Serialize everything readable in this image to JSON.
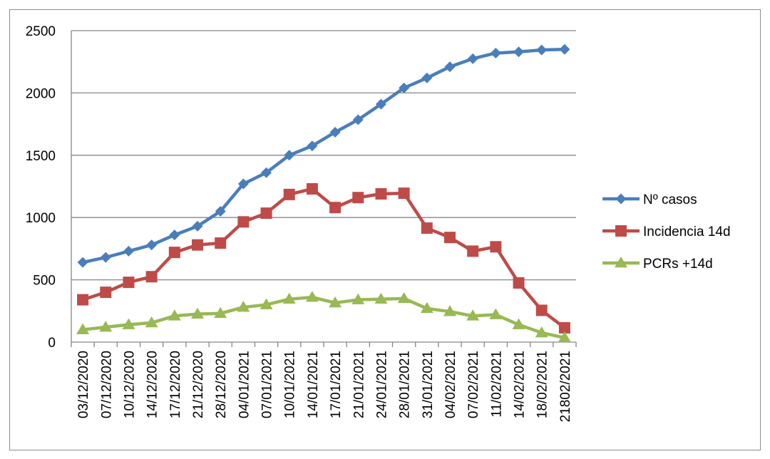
{
  "chart_data": {
    "type": "line",
    "title": "",
    "xlabel": "",
    "ylabel": "",
    "ylim": [
      0,
      2500
    ],
    "yticks": [
      0,
      500,
      1000,
      1500,
      2000,
      2500
    ],
    "grid": "horizontal",
    "legend_position": "right",
    "categories": [
      "03/12/2020",
      "07/12/2020",
      "10/12/2020",
      "14/12/2020",
      "17/12/2020",
      "21/12/2020",
      "28/12/2020",
      "04/01/2021",
      "07/01/2021",
      "10/01/2021",
      "14/01/2021",
      "17/01/2021",
      "21/01/2021",
      "24/01/2021",
      "28/01/2021",
      "31/01/2021",
      "04/02/2021",
      "07/02/2021",
      "11/02/2021",
      "14/02/2021",
      "18/02/2021",
      "21802/2021"
    ],
    "series": [
      {
        "name": "Nº casos",
        "color": "#4a7ebb",
        "marker": "diamond",
        "values": [
          640,
          680,
          730,
          780,
          860,
          930,
          1050,
          1270,
          1360,
          1500,
          1575,
          1685,
          1785,
          1910,
          2040,
          2120,
          2210,
          2275,
          2320,
          2330,
          2345,
          2350
        ]
      },
      {
        "name": "Incidencia 14d",
        "color": "#be4b48",
        "marker": "square",
        "values": [
          340,
          400,
          480,
          525,
          720,
          780,
          795,
          965,
          1035,
          1185,
          1230,
          1080,
          1160,
          1190,
          1195,
          915,
          840,
          730,
          765,
          475,
          255,
          115
        ]
      },
      {
        "name": "PCRs +14d",
        "color": "#98b954",
        "marker": "triangle",
        "values": [
          100,
          120,
          140,
          155,
          210,
          225,
          230,
          280,
          300,
          345,
          360,
          315,
          340,
          345,
          350,
          270,
          245,
          210,
          220,
          140,
          75,
          35
        ]
      }
    ]
  }
}
